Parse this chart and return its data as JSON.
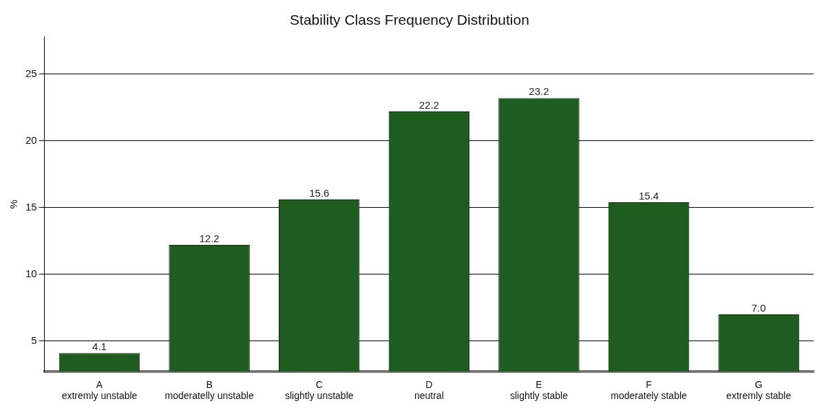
{
  "chart_data": {
    "type": "bar",
    "title": "Stability Class Frequency Distribution",
    "ylabel": "%",
    "categories": [
      "A\nextremly unstable",
      "B\nmoderatelly unstable",
      "C\nslightly unstable",
      "D\nneutral",
      "E\nslightly stable",
      "F\nmoderately stable",
      "G\nextremly stable"
    ],
    "values": [
      4.1,
      12.2,
      15.6,
      22.2,
      23.2,
      15.4,
      7.0
    ],
    "value_labels": [
      "4.1",
      "12.2",
      "15.6",
      "22.2",
      "23.2",
      "15.4",
      "7.0"
    ],
    "color": "#1f5c1f",
    "ylim": [
      2.7,
      27.8
    ],
    "yticks": [
      5,
      10,
      15,
      20,
      25
    ],
    "grid": "y",
    "legend": false
  }
}
